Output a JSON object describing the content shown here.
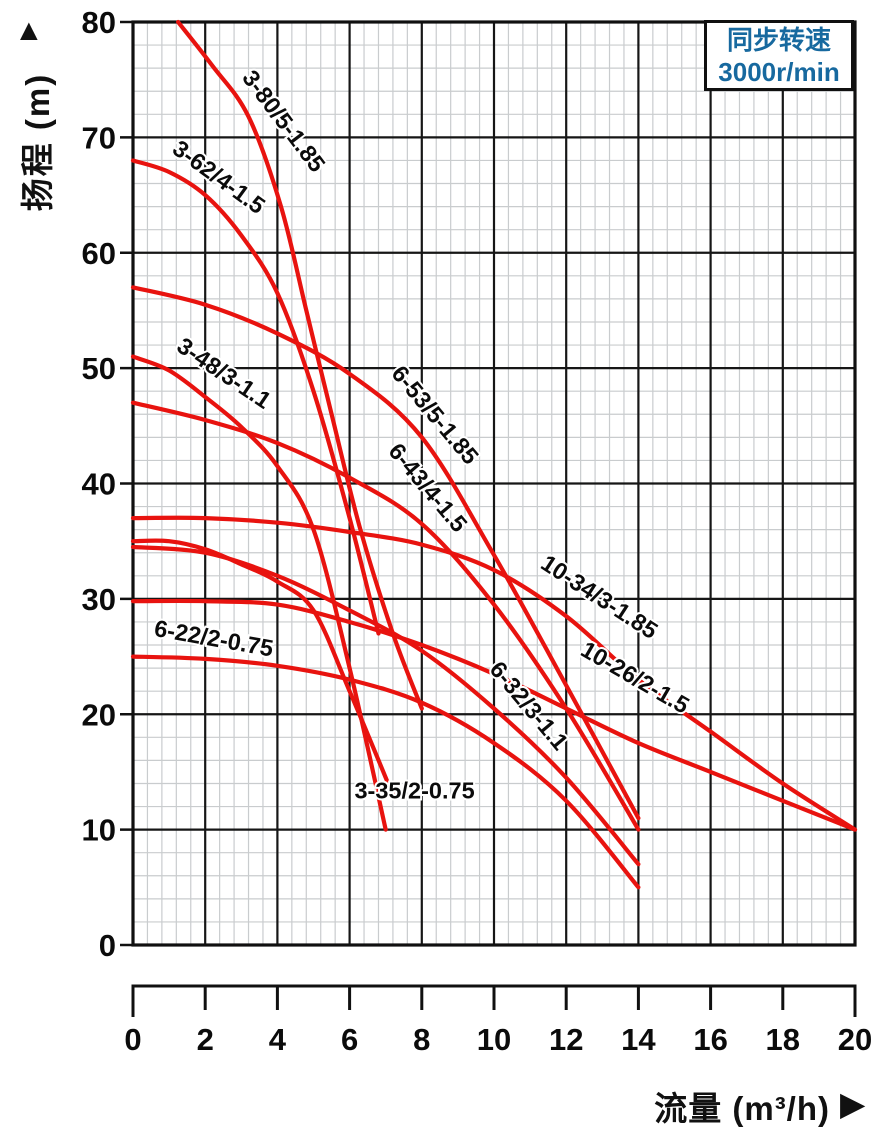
{
  "legend": {
    "line1": "同步转速",
    "line2": "3000r/min",
    "text_color": "#17699f",
    "position": "top-right"
  },
  "y_axis": {
    "title": "扬程 (m)",
    "arrow": "▲",
    "ticks": [
      80,
      70,
      60,
      50,
      40,
      30,
      20,
      10,
      0
    ],
    "min": 0,
    "max": 80
  },
  "x_axis": {
    "title": "流量 (m³/h)",
    "arrow": "▶",
    "ticks": [
      0,
      2,
      4,
      6,
      8,
      10,
      12,
      14,
      16,
      18,
      20
    ],
    "min": 0,
    "max": 20
  },
  "chart_data": {
    "type": "line",
    "title": "",
    "xlabel": "流量 (m³/h)",
    "ylabel": "扬程 (m)",
    "xlim": [
      0,
      20
    ],
    "ylim": [
      0,
      80
    ],
    "grid": {
      "on": true,
      "x_minor": 0.4,
      "x_major": 2,
      "y_minor": 2,
      "y_major": 10
    },
    "legend_note": {
      "line1": "同步转速",
      "line2": "3000r/min"
    },
    "curve_color": "#e8130f",
    "label_color": "#0b0b0b",
    "series": [
      {
        "name": "3-80/5-1.85",
        "points": [
          [
            1.25,
            80
          ],
          [
            2.2,
            76.2
          ],
          [
            3.2,
            71.8
          ],
          [
            4.1,
            64
          ],
          [
            4.8,
            55
          ],
          [
            5.5,
            46
          ],
          [
            6.3,
            36
          ],
          [
            7.2,
            27
          ],
          [
            8,
            20.5
          ]
        ],
        "label": {
          "x": 4.0,
          "y": 71.0,
          "rotate": 53
        }
      },
      {
        "name": "3-62/4-1.5",
        "points": [
          [
            0,
            68
          ],
          [
            1,
            67
          ],
          [
            2,
            65
          ],
          [
            3,
            61.5
          ],
          [
            4,
            56.5
          ],
          [
            5,
            48
          ],
          [
            6,
            37
          ],
          [
            6.8,
            27
          ]
        ],
        "label": {
          "x": 2.25,
          "y": 66.0,
          "rotate": 36
        }
      },
      {
        "name": "3-48/3-1.1",
        "points": [
          [
            0,
            51
          ],
          [
            1,
            49.8
          ],
          [
            2,
            47.5
          ],
          [
            3,
            44.9
          ],
          [
            4,
            41.5
          ],
          [
            5,
            36
          ],
          [
            6,
            24
          ],
          [
            7,
            10
          ]
        ],
        "label": {
          "x": 2.4,
          "y": 49.0,
          "rotate": 34
        }
      },
      {
        "name": "3-35/2-0.75",
        "points": [
          [
            0,
            35
          ],
          [
            1,
            35
          ],
          [
            2,
            34.3
          ],
          [
            3,
            33
          ],
          [
            4,
            31.5
          ],
          [
            5,
            29
          ],
          [
            6,
            22
          ],
          [
            7.2,
            13
          ]
        ],
        "label": {
          "x": 7.8,
          "y": 12.7,
          "rotate": 0
        }
      },
      {
        "name": "6-53/5-1.85",
        "points": [
          [
            0,
            57
          ],
          [
            2,
            55.5
          ],
          [
            4,
            53
          ],
          [
            6,
            49.5
          ],
          [
            8,
            44
          ],
          [
            10,
            33.8
          ],
          [
            12,
            22.5
          ],
          [
            14,
            11
          ]
        ],
        "label": {
          "x": 8.2,
          "y": 45.5,
          "rotate": 50
        }
      },
      {
        "name": "6-43/4-1.5",
        "points": [
          [
            0,
            47
          ],
          [
            2,
            45.5
          ],
          [
            4,
            43.5
          ],
          [
            6,
            40.5
          ],
          [
            8,
            36.5
          ],
          [
            10,
            29.5
          ],
          [
            12,
            20.5
          ],
          [
            14,
            10
          ]
        ],
        "label": {
          "x": 8.0,
          "y": 39.2,
          "rotate": 50
        }
      },
      {
        "name": "6-32/3-1.1",
        "points": [
          [
            0,
            34.5
          ],
          [
            2,
            34
          ],
          [
            4,
            32
          ],
          [
            6,
            29
          ],
          [
            8,
            25.5
          ],
          [
            10,
            20.5
          ],
          [
            12,
            14.5
          ],
          [
            14,
            7
          ]
        ],
        "label": {
          "x": 10.8,
          "y": 20.3,
          "rotate": 50
        }
      },
      {
        "name": "6-22/2-0.75",
        "points": [
          [
            0,
            25
          ],
          [
            2,
            24.8
          ],
          [
            4,
            24.2
          ],
          [
            6,
            23
          ],
          [
            8,
            21
          ],
          [
            10,
            17.5
          ],
          [
            12,
            12.5
          ],
          [
            14,
            5
          ]
        ],
        "label": {
          "x": 2.2,
          "y": 25.9,
          "rotate": 10
        }
      },
      {
        "name": "10-34/3-1.85",
        "points": [
          [
            0,
            37
          ],
          [
            2,
            37
          ],
          [
            4,
            36.6
          ],
          [
            6,
            35.8
          ],
          [
            8,
            34.7
          ],
          [
            10,
            32.5
          ],
          [
            12,
            28.5
          ],
          [
            14,
            23
          ],
          [
            16,
            18.5
          ],
          [
            18,
            14
          ],
          [
            20,
            10
          ]
        ],
        "label": {
          "x": 12.8,
          "y": 29.6,
          "rotate": 33
        }
      },
      {
        "name": "10-26/2-1.5",
        "points": [
          [
            0,
            29.8
          ],
          [
            2,
            29.8
          ],
          [
            4,
            29.5
          ],
          [
            6,
            28
          ],
          [
            8,
            26
          ],
          [
            10,
            23.5
          ],
          [
            12,
            20.5
          ],
          [
            14,
            17.5
          ],
          [
            16,
            15
          ],
          [
            18,
            12.5
          ],
          [
            20,
            10
          ]
        ],
        "label": {
          "x": 13.8,
          "y": 22.6,
          "rotate": 30
        }
      }
    ]
  },
  "style": {
    "minor_grid_color": "#c9ccce",
    "major_grid_color": "#161616",
    "frame_color": "#101010",
    "tick_label_color": "#0b0b0b"
  }
}
